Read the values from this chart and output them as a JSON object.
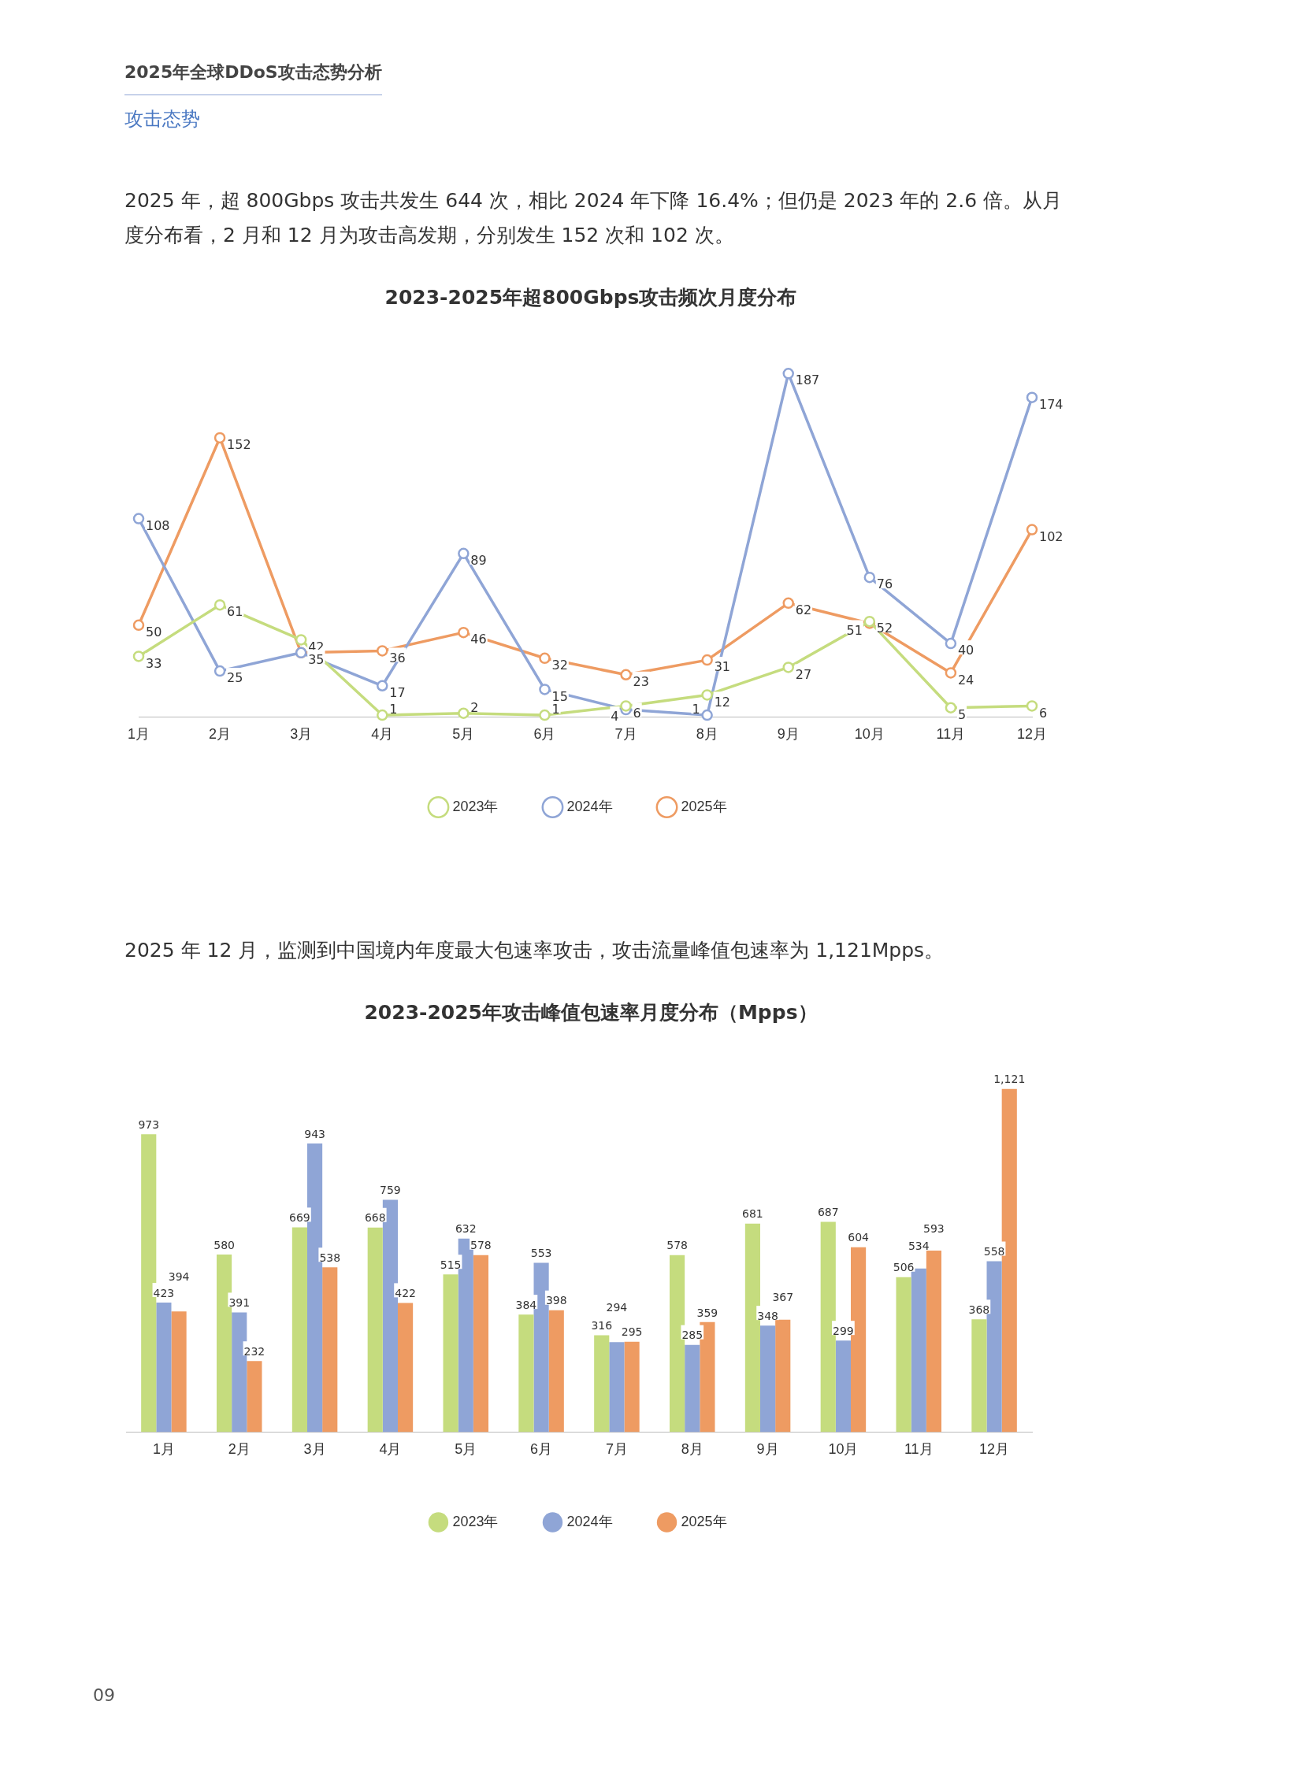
{
  "chart_data": [
    {
      "type": "line",
      "title": "2023-2025年超800Gbps攻击频次月度分布",
      "annotations": [
        "2025年全球DDoS攻击态势分析",
        "攻击态势",
        "2025 年，超 800Gbps 攻击共发生 644 次，相比 2024 年下降 16.4%；但仍是 2023 年的 2.6 倍。从月度分布看，2 月和 12 月为攻击高发期，分别发生 152 次和 102 次。"
      ],
      "categories": [
        "1月",
        "2月",
        "3月",
        "4月",
        "5月",
        "6月",
        "7月",
        "8月",
        "9月",
        "10月",
        "11月",
        "12月"
      ],
      "legend": "bottom",
      "grid": false,
      "marker": "circle",
      "line_style": "solid",
      "series": [
        {
          "name": "2023年",
          "color": "#c5dc7e",
          "values": [
            33,
            61,
            42,
            1,
            2,
            1,
            6,
            12,
            27,
            52,
            5,
            6
          ],
          "value_labels": [
            "33",
            "61",
            "42",
            "1",
            "2",
            "1",
            "6",
            "12",
            "27",
            "52",
            "5",
            "6"
          ]
        },
        {
          "name": "2024年",
          "color": "#8fa5d6",
          "values": [
            108,
            25,
            35,
            17,
            89,
            15,
            4,
            1,
            187,
            76,
            40,
            174
          ],
          "value_labels": [
            "108",
            "25",
            null,
            "17",
            "89",
            "15",
            "4",
            "1",
            "187",
            "76",
            "40",
            "174"
          ]
        },
        {
          "name": "2025年",
          "color": "#ee9b62",
          "values": [
            50,
            152,
            35,
            36,
            46,
            32,
            23,
            31,
            62,
            51,
            24,
            102
          ],
          "value_labels": [
            "50",
            "152",
            "35",
            "36",
            "46",
            "32",
            "23",
            "31",
            "62",
            "51",
            "24",
            "102"
          ]
        }
      ]
    },
    {
      "type": "bar",
      "title": "2023-2025年攻击峰值包速率月度分布（Mpps）",
      "annotations": [
        "2025 年 12 月，监测到中国境内年度最大包速率攻击，攻击流量峰值包速率为 1,121Mpps。",
        "09"
      ],
      "categories": [
        "1月",
        "2月",
        "3月",
        "4月",
        "5月",
        "6月",
        "7月",
        "8月",
        "9月",
        "10月",
        "11月",
        "12月"
      ],
      "legend": "bottom",
      "grid": false,
      "series": [
        {
          "name": "2023年",
          "color": "#c5dc7e",
          "values": [
            973,
            580,
            669,
            668,
            515,
            384,
            316,
            578,
            681,
            687,
            506,
            368
          ],
          "value_labels": [
            "973",
            "580",
            "669",
            "668",
            "515",
            "384",
            "316",
            "578",
            "681",
            "687",
            "506",
            "368"
          ]
        },
        {
          "name": "2024年",
          "color": "#8fa5d6",
          "values": [
            423,
            391,
            943,
            759,
            632,
            553,
            294,
            285,
            348,
            299,
            534,
            558
          ],
          "value_labels": [
            "423",
            "391",
            "943",
            "759",
            "632",
            "553",
            "294",
            "285",
            "348",
            "299",
            "534",
            "558"
          ]
        },
        {
          "name": "2025年",
          "color": "#ee9b62",
          "values": [
            394,
            232,
            538,
            422,
            578,
            398,
            295,
            359,
            367,
            604,
            593,
            1121
          ],
          "value_labels": [
            "394",
            "232",
            "538",
            "422",
            "578",
            "398",
            "295",
            "359",
            "367",
            "604",
            "593",
            "1,121"
          ]
        }
      ]
    }
  ]
}
